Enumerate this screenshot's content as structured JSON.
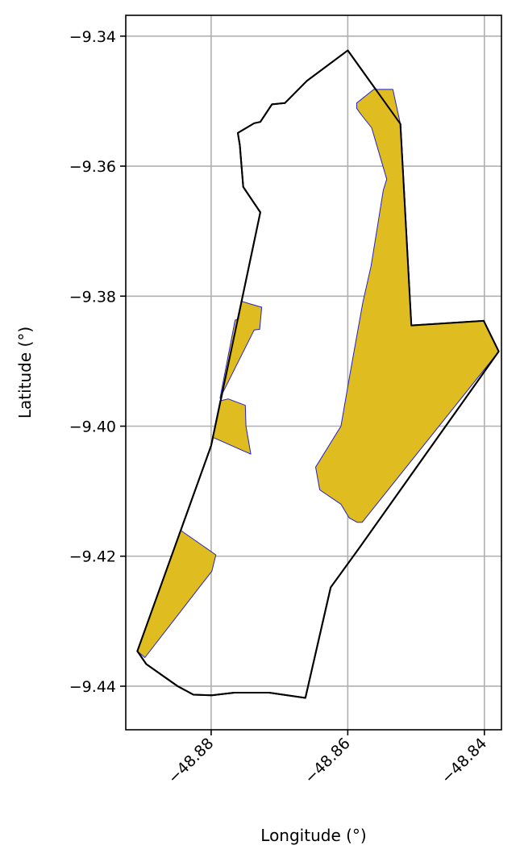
{
  "chart_data": {
    "type": "map",
    "xlabel": "Longitude (°)",
    "ylabel": "Latitude (°)",
    "xlim": [
      -48.8925,
      -48.8375
    ],
    "ylim": [
      -9.4467,
      -9.3368
    ],
    "grid": true,
    "x_ticks": [
      {
        "value": -48.88,
        "label": "−48.88"
      },
      {
        "value": -48.86,
        "label": "−48.86"
      },
      {
        "value": -48.84,
        "label": "−48.84"
      }
    ],
    "y_ticks": [
      {
        "value": -9.34,
        "label": "−9.34"
      },
      {
        "value": -9.36,
        "label": "−9.36"
      },
      {
        "value": -9.38,
        "label": "−9.38"
      },
      {
        "value": -9.4,
        "label": "−9.40"
      },
      {
        "value": -9.42,
        "label": "−9.42"
      },
      {
        "value": -9.44,
        "label": "−9.44"
      }
    ],
    "colors": {
      "boundary": "#000000",
      "fill": "#dfbc1f",
      "fill_edge": "#2222cc",
      "grid": "#b0b0b0"
    },
    "boundary": [
      [
        -48.86,
        -9.3422
      ],
      [
        -48.8523,
        -9.3535
      ],
      [
        -48.8507,
        -9.3845
      ],
      [
        -48.8401,
        -9.3838
      ],
      [
        -48.8379,
        -9.3885
      ],
      [
        -48.8583,
        -9.4187
      ],
      [
        -48.8625,
        -9.4248
      ],
      [
        -48.8662,
        -9.4418
      ],
      [
        -48.8715,
        -9.441
      ],
      [
        -48.8766,
        -9.441
      ],
      [
        -48.8799,
        -9.4414
      ],
      [
        -48.8826,
        -9.4413
      ],
      [
        -48.8849,
        -9.44
      ],
      [
        -48.8895,
        -9.4366
      ],
      [
        -48.8908,
        -9.4346
      ],
      [
        -48.88,
        -9.403
      ],
      [
        -48.8728,
        -9.3671
      ],
      [
        -48.8753,
        -9.3632
      ],
      [
        -48.8758,
        -9.3568
      ],
      [
        -48.8761,
        -9.3549
      ],
      [
        -48.8737,
        -9.3534
      ],
      [
        -48.8728,
        -9.3532
      ],
      [
        -48.8711,
        -9.3505
      ],
      [
        -48.8692,
        -9.3503
      ],
      [
        -48.866,
        -9.3469
      ]
    ],
    "filled_areas": [
      {
        "name": "east",
        "points": [
          [
            -48.8534,
            -9.3482
          ],
          [
            -48.8523,
            -9.3535
          ],
          [
            -48.8507,
            -9.3845
          ],
          [
            -48.8401,
            -9.3838
          ],
          [
            -48.8379,
            -9.3885
          ],
          [
            -48.8579,
            -9.4148
          ],
          [
            -48.8586,
            -9.4148
          ],
          [
            -48.8598,
            -9.4141
          ],
          [
            -48.861,
            -9.412
          ],
          [
            -48.8641,
            -9.4098
          ],
          [
            -48.8647,
            -9.4063
          ],
          [
            -48.861,
            -9.4
          ],
          [
            -48.8596,
            -9.3915
          ],
          [
            -48.8578,
            -9.381
          ],
          [
            -48.8566,
            -9.3754
          ],
          [
            -48.8557,
            -9.3696
          ],
          [
            -48.8548,
            -9.3637
          ],
          [
            -48.8543,
            -9.362
          ],
          [
            -48.8565,
            -9.3541
          ],
          [
            -48.8581,
            -9.352
          ],
          [
            -48.8587,
            -9.3511
          ],
          [
            -48.8587,
            -9.3503
          ],
          [
            -48.8562,
            -9.3482
          ]
        ]
      },
      {
        "name": "middle-upper",
        "points": [
          [
            -48.8755,
            -9.3808
          ],
          [
            -48.8743,
            -9.3812
          ],
          [
            -48.8726,
            -9.3817
          ],
          [
            -48.8729,
            -9.3851
          ],
          [
            -48.8737,
            -9.3852
          ],
          [
            -48.8787,
            -9.3957
          ],
          [
            -48.8765,
            -9.3837
          ],
          [
            -48.876,
            -9.3835
          ]
        ]
      },
      {
        "name": "middle-lower",
        "points": [
          [
            -48.8787,
            -9.3961
          ],
          [
            -48.8775,
            -9.3958
          ],
          [
            -48.875,
            -9.3968
          ],
          [
            -48.8749,
            -9.4
          ],
          [
            -48.8742,
            -9.4043
          ],
          [
            -48.8798,
            -9.4017
          ]
        ]
      },
      {
        "name": "southwest",
        "points": [
          [
            -48.8845,
            -9.416
          ],
          [
            -48.8793,
            -9.4198
          ],
          [
            -48.8799,
            -9.4223
          ],
          [
            -48.8897,
            -9.4356
          ],
          [
            -48.8908,
            -9.4346
          ]
        ]
      }
    ]
  }
}
